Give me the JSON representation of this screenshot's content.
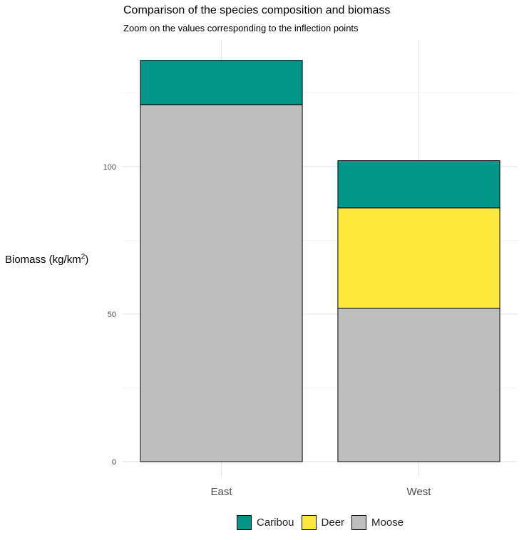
{
  "chart_data": {
    "type": "bar",
    "stacked": true,
    "title": "Comparison of the species composition and biomass",
    "subtitle": "Zoom on the values corresponding to the inflection points",
    "xlabel": "",
    "ylabel_text": "Biomass (kg/km",
    "ylabel_sup": "2",
    "ylabel_end": ")",
    "categories": [
      "East",
      "West"
    ],
    "series": [
      {
        "name": "Moose",
        "color": "#bebebe",
        "values": [
          121,
          52
        ]
      },
      {
        "name": "Deer",
        "color": "#fde93c",
        "values": [
          0,
          34
        ]
      },
      {
        "name": "Caribou",
        "color": "#009688",
        "values": [
          15,
          16
        ]
      }
    ],
    "legend_order": [
      "Caribou",
      "Deer",
      "Moose"
    ],
    "ylim": [
      0,
      140
    ],
    "y_ticks": [
      0,
      50,
      100
    ],
    "y_tick_labels": [
      "0",
      "50",
      "100"
    ],
    "grid": true,
    "legend_position": "bottom"
  }
}
